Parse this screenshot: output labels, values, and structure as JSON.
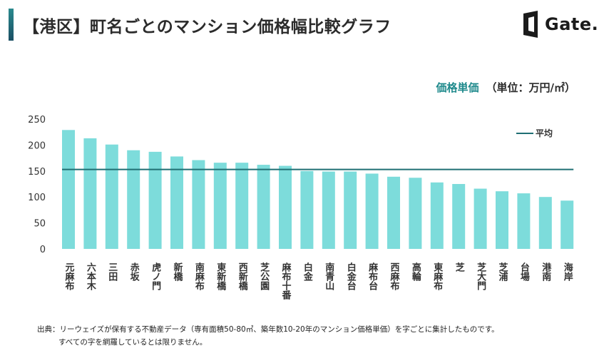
{
  "header": {
    "title": "【港区】町名ごとのマンション価格幅比較グラフ",
    "logo_text": "Gate."
  },
  "unit_label": {
    "measure": "価格単価",
    "unit": "（単位：万円/㎡）"
  },
  "colors": {
    "bar": "#7ddcdb",
    "average_line": "#1f6f73",
    "accent": "#1f8a8c"
  },
  "chart_data": {
    "type": "bar",
    "title": "【港区】町名ごとのマンション価格幅比較グラフ",
    "ylabel": "価格単価（単位：万円/㎡）",
    "xlabel": "",
    "ylim": [
      0,
      250
    ],
    "yticks": [
      0,
      50,
      100,
      150,
      200,
      250
    ],
    "grid": false,
    "categories": [
      "元麻布",
      "六本木",
      "三田",
      "赤坂",
      "虎ノ門",
      "新橋",
      "南麻布",
      "東新橋",
      "西新橋",
      "芝公園",
      "麻布十番",
      "白金",
      "南青山",
      "白金台",
      "麻布台",
      "西麻布",
      "高輪",
      "東麻布",
      "芝",
      "芝大門",
      "芝浦",
      "台場",
      "港南",
      "海岸"
    ],
    "series": [
      {
        "name": "価格単価",
        "values": [
          229,
          213,
          201,
          190,
          187,
          178,
          171,
          166,
          166,
          162,
          160,
          150,
          149,
          149,
          145,
          139,
          137,
          128,
          125,
          116,
          111,
          107,
          100,
          93
        ]
      }
    ],
    "average": {
      "name": "平均",
      "value": 153
    },
    "legend": {
      "entries": [
        "平均"
      ],
      "placement": "top-right"
    }
  },
  "footnote": {
    "line1": "出典：リーウェイズが保有する不動産データ（専有面積50-80㎡、築年数10-20年のマンション価格単価）を字ごとに集計したものです。",
    "line2": "すべての字を網羅しているとは限りません。"
  }
}
